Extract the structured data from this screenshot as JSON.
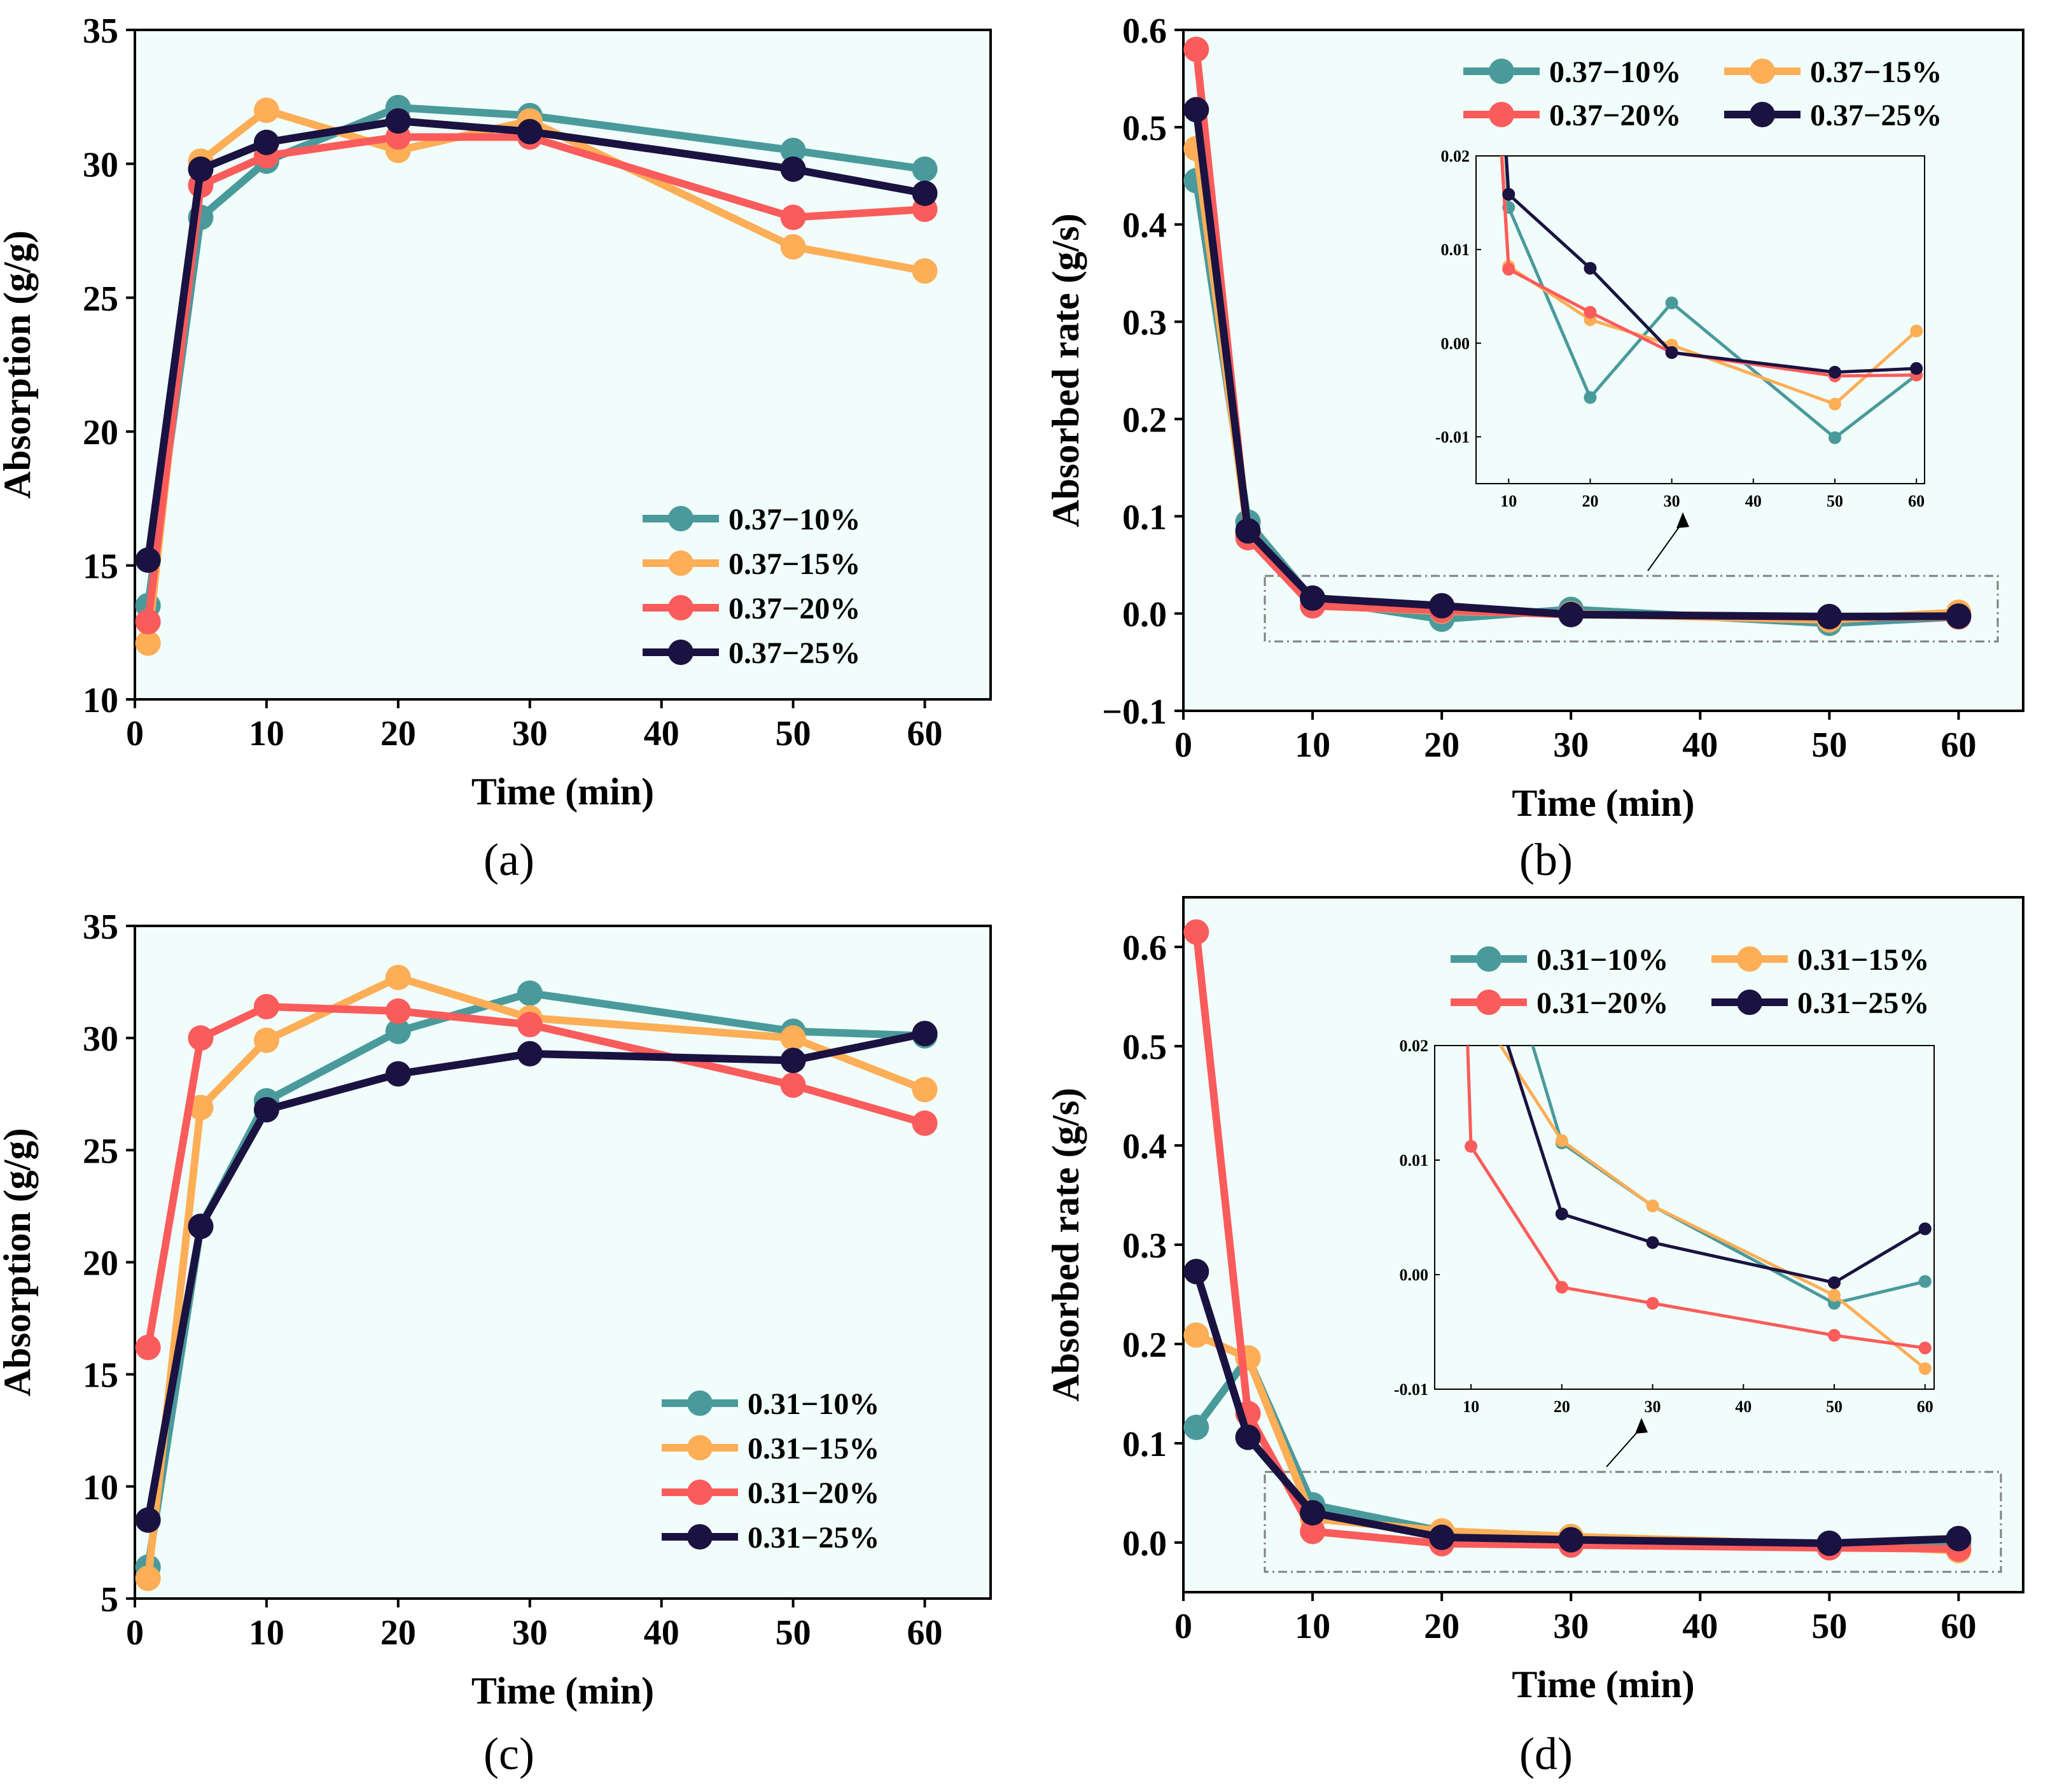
{
  "colors": {
    "plot_background": "#f0fdfa",
    "teal": "#4a9a9c",
    "orange": "#fdae57",
    "red": "#fa5c5c",
    "navy": "#1a1240",
    "axis": "#000000",
    "dashed_box": "#808080"
  },
  "chart_data": [
    {
      "panel": "(a)",
      "type": "line",
      "xlabel": "Time (min)",
      "ylabel": "Absorption (g/g)",
      "xlim": [
        0,
        65
      ],
      "ylim": [
        10,
        35
      ],
      "xticks": [
        0,
        10,
        20,
        30,
        40,
        50,
        60
      ],
      "yticks": [
        10,
        15,
        20,
        25,
        30,
        35
      ],
      "legend_position": "bottom-right",
      "x": [
        1,
        5,
        10,
        20,
        30,
        50,
        60
      ],
      "series": [
        {
          "name": "0.37−10%",
          "color": "teal",
          "values": [
            13.5,
            28.0,
            30.1,
            32.1,
            31.8,
            30.5,
            29.8
          ]
        },
        {
          "name": "0.37−15%",
          "color": "orange",
          "values": [
            12.1,
            30.1,
            32.0,
            30.5,
            31.6,
            26.9,
            26.0
          ]
        },
        {
          "name": "0.37−20%",
          "color": "red",
          "values": [
            12.9,
            29.2,
            30.3,
            31.0,
            31.0,
            28.0,
            28.3
          ]
        },
        {
          "name": "0.37−25%",
          "color": "navy",
          "values": [
            15.2,
            29.8,
            30.8,
            31.6,
            31.2,
            29.8,
            28.9
          ]
        }
      ]
    },
    {
      "panel": "(b)",
      "type": "line",
      "xlabel": "Time (min)",
      "ylabel": "Absorbed rate (g/s)",
      "xlim": [
        0,
        65
      ],
      "ylim": [
        -0.1,
        0.6
      ],
      "xticks": [
        0,
        10,
        20,
        30,
        40,
        50,
        60
      ],
      "yticks": [
        "−0.1",
        "0.0",
        "0.1",
        "0.2",
        "0.3",
        "0.4",
        "0.5",
        "0.6"
      ],
      "legend_position": "top-right",
      "x": [
        1,
        5,
        10,
        20,
        30,
        50,
        60
      ],
      "series": [
        {
          "name": "0.37−10%",
          "color": "teal",
          "values": [
            0.445,
            0.094,
            0.0145,
            -0.0058,
            0.0043,
            -0.0101,
            -0.0034
          ]
        },
        {
          "name": "0.37−15%",
          "color": "orange",
          "values": [
            0.478,
            0.082,
            0.0082,
            0.0025,
            -0.0002,
            -0.0065,
            0.0013
          ]
        },
        {
          "name": "0.37−20%",
          "color": "red",
          "values": [
            0.58,
            0.078,
            0.0079,
            0.0033,
            -0.001,
            -0.0035,
            -0.0034
          ]
        },
        {
          "name": "0.37−25%",
          "color": "navy",
          "values": [
            0.518,
            0.085,
            0.0159,
            0.008,
            -0.001,
            -0.0031,
            -0.0027
          ]
        }
      ],
      "inset": {
        "xlim": [
          6,
          61
        ],
        "ylim": [
          -0.015,
          0.02
        ],
        "xticks": [
          10,
          20,
          30,
          40,
          50,
          60
        ],
        "yticks": [
          "-0.01",
          "0.00",
          "0.01",
          "0.02"
        ],
        "ytick_values": [
          -0.01,
          0.0,
          0.01,
          0.02
        ]
      }
    },
    {
      "panel": "(c)",
      "type": "line",
      "xlabel": "Time (min)",
      "ylabel": "Absorption (g/g)",
      "xlim": [
        0,
        65
      ],
      "ylim": [
        5,
        35
      ],
      "xticks": [
        0,
        10,
        20,
        30,
        40,
        50,
        60
      ],
      "yticks": [
        5,
        10,
        15,
        20,
        25,
        30,
        35
      ],
      "legend_position": "bottom-right",
      "x": [
        1,
        5,
        10,
        20,
        30,
        50,
        60
      ],
      "series": [
        {
          "name": "0.31−10%",
          "color": "teal",
          "values": [
            6.4,
            21.6,
            27.2,
            30.3,
            32.0,
            30.3,
            30.1
          ]
        },
        {
          "name": "0.31−15%",
          "color": "orange",
          "values": [
            5.9,
            26.9,
            29.9,
            32.7,
            30.9,
            30.0,
            27.7
          ]
        },
        {
          "name": "0.31−20%",
          "color": "red",
          "values": [
            16.2,
            30.0,
            31.4,
            31.2,
            30.6,
            27.9,
            26.2
          ]
        },
        {
          "name": "0.31−25%",
          "color": "navy",
          "values": [
            8.5,
            21.6,
            26.8,
            28.4,
            29.3,
            29.0,
            30.2
          ]
        }
      ]
    },
    {
      "panel": "(d)",
      "type": "line",
      "xlabel": "Time (min)",
      "ylabel": "Absorbed rate (g/s)",
      "xlim": [
        0,
        65
      ],
      "ylim": [
        -0.05,
        0.65
      ],
      "xticks": [
        0,
        10,
        20,
        30,
        40,
        50,
        60
      ],
      "yticks": [
        "0.0",
        "0.1",
        "0.2",
        "0.3",
        "0.4",
        "0.5",
        "0.6"
      ],
      "ytick_values": [
        0.0,
        0.1,
        0.2,
        0.3,
        0.4,
        0.5,
        0.6
      ],
      "legend_position": "top-right",
      "x": [
        1,
        5,
        10,
        20,
        30,
        50,
        60
      ],
      "series": [
        {
          "name": "0.31−10%",
          "color": "teal",
          "values": [
            0.116,
            0.186,
            0.038,
            0.0115,
            0.006,
            -0.0025,
            -0.0006
          ]
        },
        {
          "name": "0.31−15%",
          "color": "orange",
          "values": [
            0.209,
            0.186,
            0.024,
            0.0117,
            0.006,
            -0.0018,
            -0.0082
          ]
        },
        {
          "name": "0.31−20%",
          "color": "red",
          "values": [
            0.615,
            0.13,
            0.0112,
            -0.0011,
            -0.0025,
            -0.0053,
            -0.0064
          ]
        },
        {
          "name": "0.31−25%",
          "color": "navy",
          "values": [
            0.273,
            0.106,
            0.03,
            0.0053,
            0.0028,
            -0.0007,
            0.004
          ]
        }
      ],
      "inset": {
        "xlim": [
          6,
          61
        ],
        "ylim": [
          -0.01,
          0.02
        ],
        "xticks": [
          10,
          20,
          30,
          40,
          50,
          60
        ],
        "yticks": [
          "-0.01",
          "0.00",
          "0.01",
          "0.02"
        ],
        "ytick_values": [
          -0.01,
          0.0,
          0.01,
          0.02
        ]
      }
    }
  ]
}
